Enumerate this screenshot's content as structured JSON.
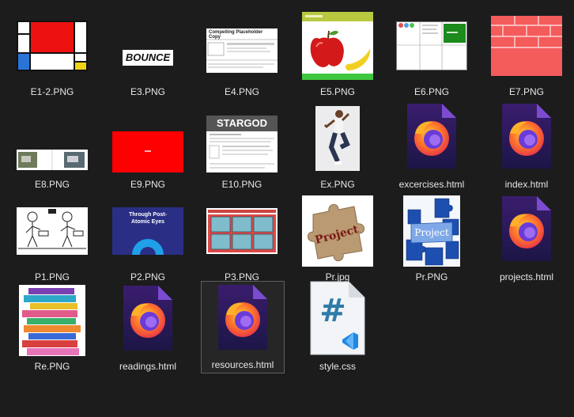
{
  "files": [
    {
      "name": "E1-2.PNG",
      "type": "png",
      "icon": "mondrian-thumbnail"
    },
    {
      "name": "E3.PNG",
      "type": "png",
      "icon": "bounce-text-thumbnail",
      "text": "BOUNCE"
    },
    {
      "name": "E4.PNG",
      "type": "png",
      "icon": "placeholder-page-thumbnail",
      "text": "Compelling Placeholder Copy"
    },
    {
      "name": "E5.PNG",
      "type": "png",
      "icon": "fruit-page-thumbnail"
    },
    {
      "name": "E6.PNG",
      "type": "png",
      "icon": "layout-grid-thumbnail"
    },
    {
      "name": "E7.PNG",
      "type": "png",
      "icon": "red-bricks-thumbnail"
    },
    {
      "name": "E8.PNG",
      "type": "png",
      "icon": "two-photos-thumbnail"
    },
    {
      "name": "E9.PNG",
      "type": "png",
      "icon": "red-box-thumbnail"
    },
    {
      "name": "E10.PNG",
      "type": "png",
      "icon": "stargod-page-thumbnail",
      "text": "STARGOD"
    },
    {
      "name": "Ex.PNG",
      "type": "png",
      "icon": "runner-photo-thumbnail"
    },
    {
      "name": "excercises.html",
      "type": "html",
      "icon": "firefox-document-icon"
    },
    {
      "name": "index.html",
      "type": "html",
      "icon": "firefox-document-icon"
    },
    {
      "name": "P1.PNG",
      "type": "png",
      "icon": "stick-figures-thumbnail"
    },
    {
      "name": "P2.PNG",
      "type": "png",
      "icon": "post-atomic-poster-thumbnail",
      "text": "Through Post-Atomic Eyes"
    },
    {
      "name": "P3.PNG",
      "type": "png",
      "icon": "tile-grid-thumbnail"
    },
    {
      "name": "Pr.jpg",
      "type": "jpg",
      "icon": "puzzle-piece-thumbnail",
      "text": "Project"
    },
    {
      "name": "Pr.PNG",
      "type": "png",
      "icon": "blue-puzzle-thumbnail",
      "text": "Project"
    },
    {
      "name": "projects.html",
      "type": "html",
      "icon": "firefox-document-icon"
    },
    {
      "name": "Re.PNG",
      "type": "png",
      "icon": "book-stack-thumbnail"
    },
    {
      "name": "readings.html",
      "type": "html",
      "icon": "firefox-document-icon"
    },
    {
      "name": "resources.html",
      "type": "html",
      "icon": "firefox-document-icon",
      "selected": true
    },
    {
      "name": "style.css",
      "type": "css",
      "icon": "vscode-css-document-icon"
    }
  ]
}
